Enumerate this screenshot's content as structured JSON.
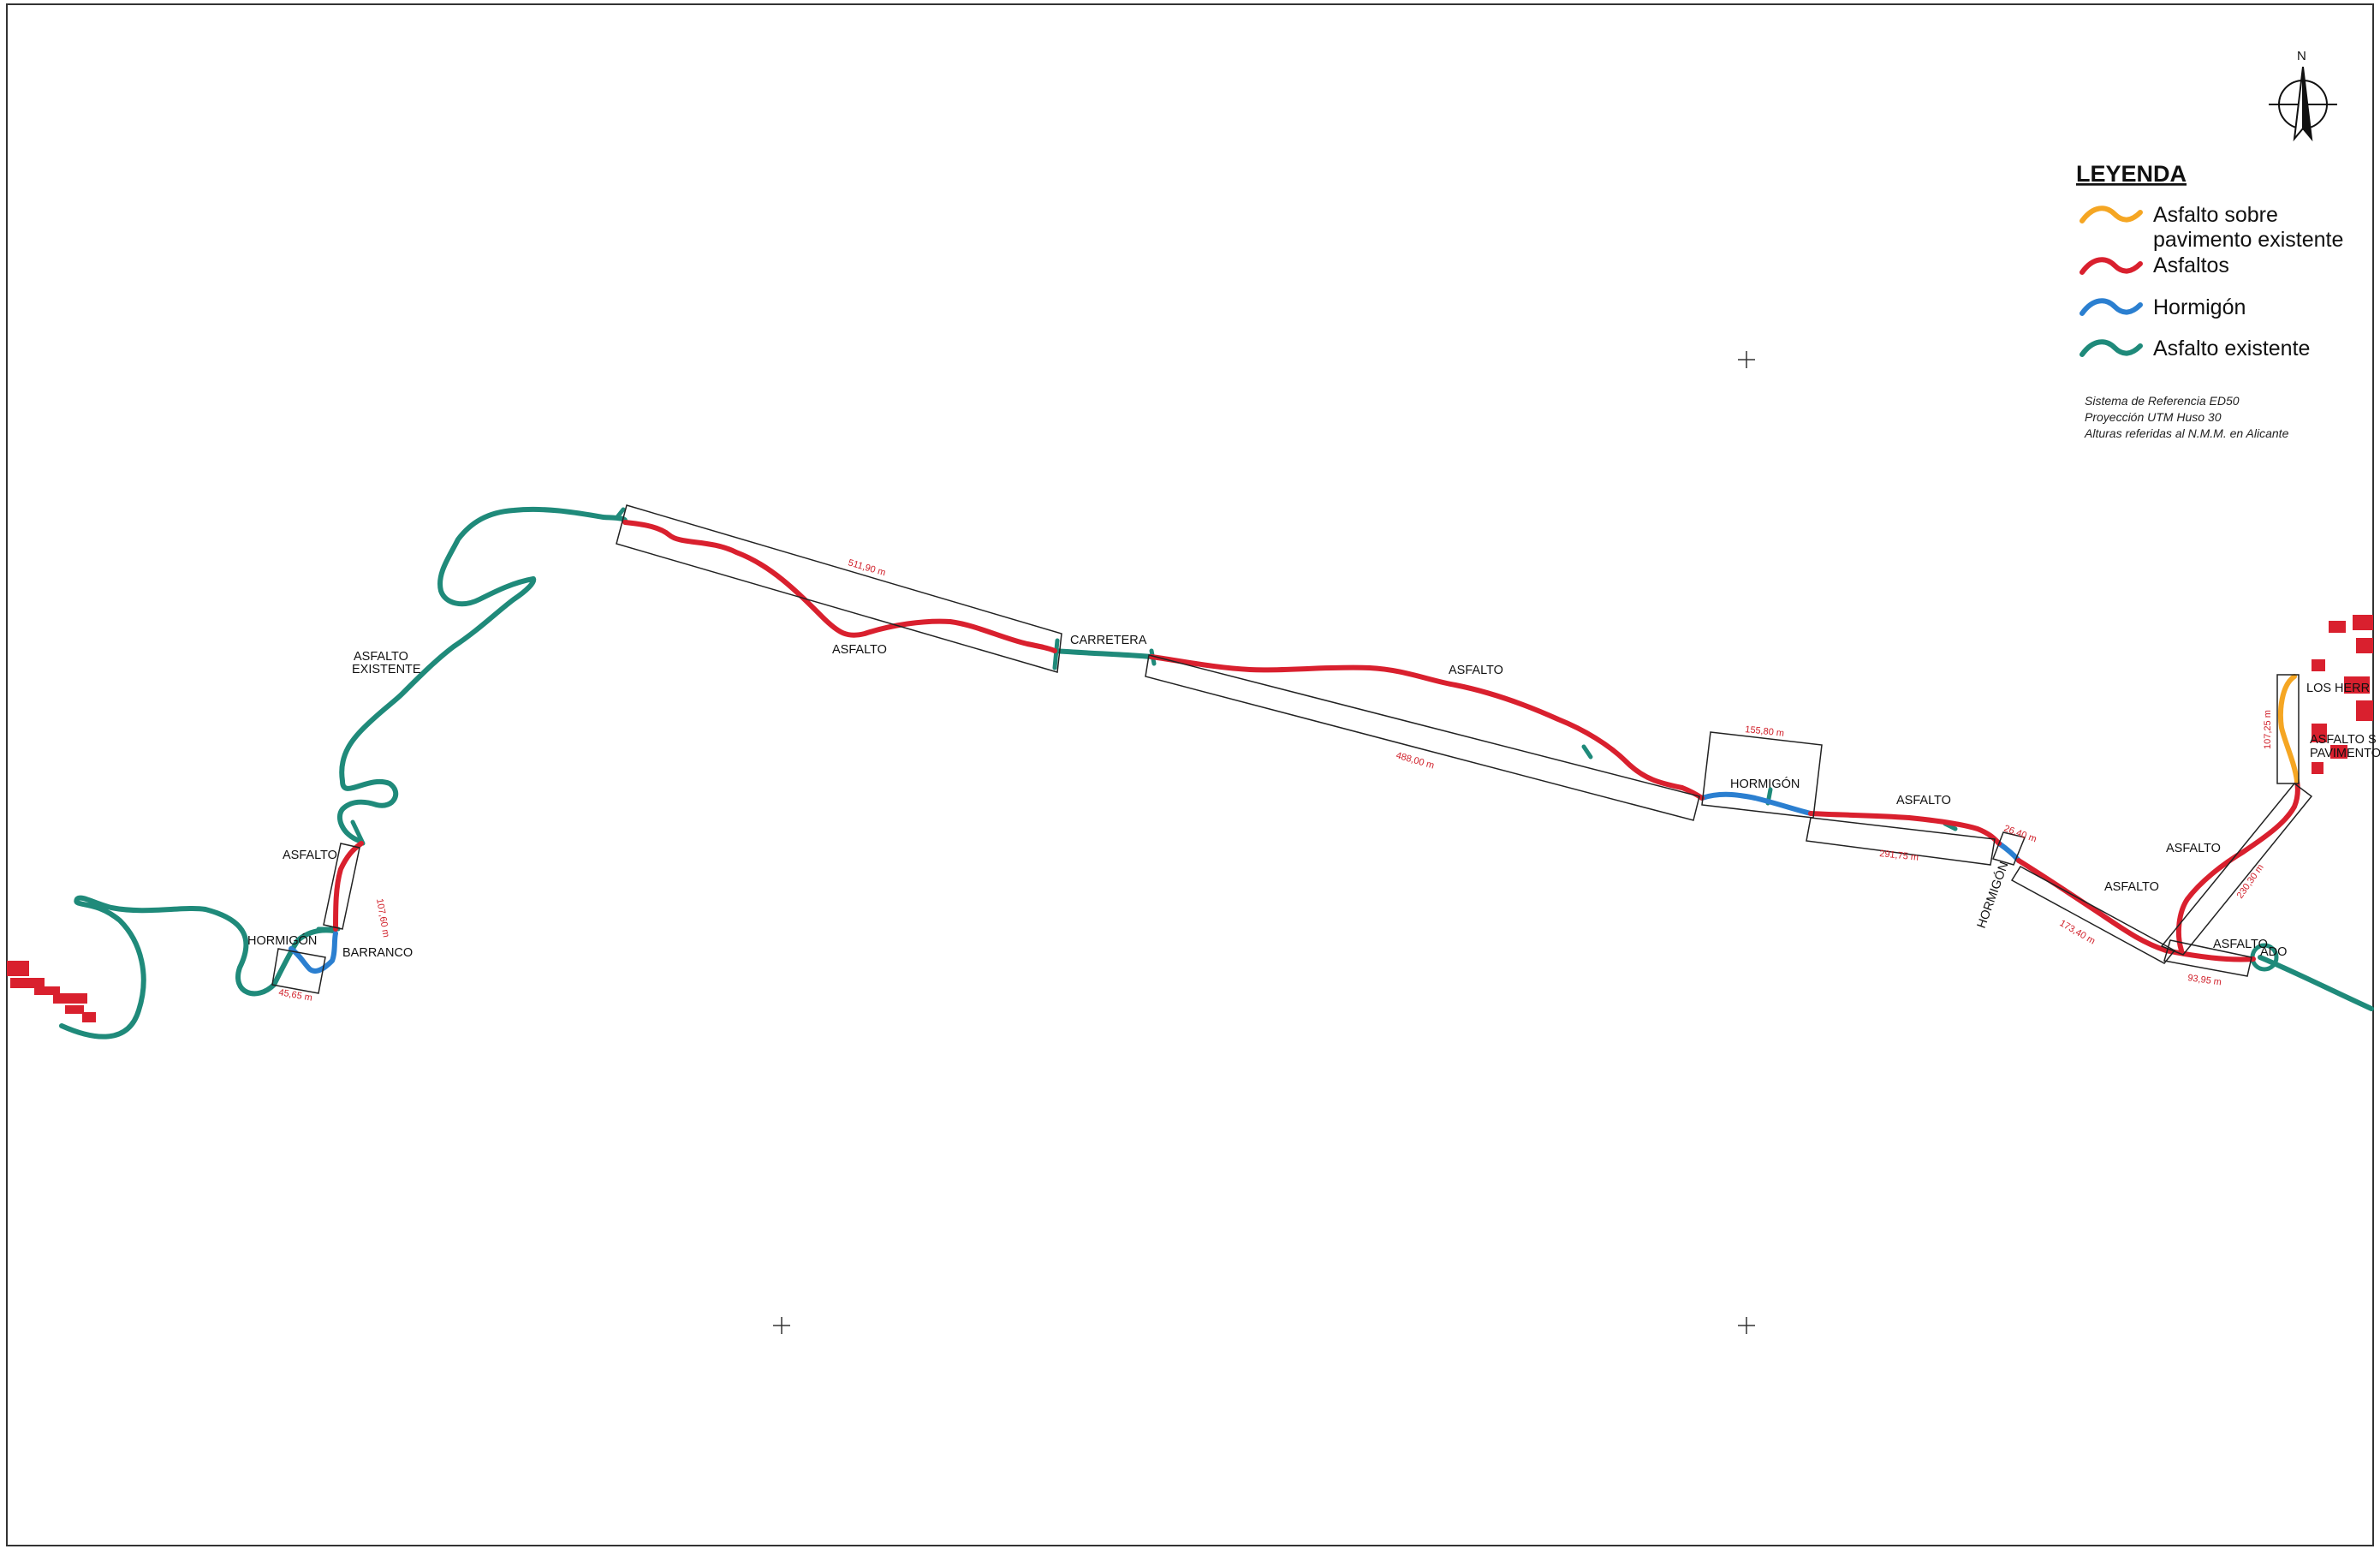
{
  "north_label": "N",
  "legend": {
    "title": "LEYENDA",
    "items": [
      {
        "line1": "Asfalto sobre",
        "line2": "pavimento existente",
        "color": "#f5a623"
      },
      {
        "line1": "Asfaltos",
        "line2": "",
        "color": "#d9202e"
      },
      {
        "line1": "Hormigón",
        "line2": "",
        "color": "#2b7fd0"
      },
      {
        "line1": "Asfalto existente",
        "line2": "",
        "color": "#1f8a7a"
      }
    ]
  },
  "reference_notes": [
    "Sistema de Referencia ED50",
    "Proyección UTM Huso 30",
    "Alturas referidas al N.M.M. en Alicante"
  ],
  "labels": {
    "asfalto_existente_1": "ASFALTO",
    "asfalto_existente_2": "EXISTENTE",
    "asfalto_w": "ASFALTO",
    "hormigon_w": "HORMIGÓN",
    "barranco": "BARRANCO",
    "asfalto_n1": "ASFALTO",
    "carretera": "CARRETERA",
    "asfalto_n2": "ASFALTO",
    "hormigon_c": "HORMIGÓN",
    "asfalto_c": "ASFALTO",
    "hormigon_e": "HORMIGÓN",
    "asfalto_e1": "ASFALTO",
    "asfalto_e2": "ASFALTO",
    "asfalto_e3": "ASFALTO",
    "ado": "ADO",
    "los_herr": "LOS HERR",
    "asfalto_s": "ASFALTO S",
    "pavimento": "PAVIMENTO"
  },
  "dimensions": {
    "d1": "511,90 m",
    "d2": "488,00 m",
    "d3": "155,80 m",
    "d4": "291,75 m",
    "d5": "26,40 m",
    "d6": "173,40 m",
    "d7": "93,95 m",
    "d8": "230,30 m",
    "d9": "107,25 m",
    "d10": "107,60 m",
    "d11": "45,65 m"
  },
  "colors": {
    "asfalto_sobre": "#f5a623",
    "asfalto": "#d9202e",
    "hormigon": "#2b7fd0",
    "asfalto_existente": "#1f8a7a",
    "buildings": "#d9202e"
  }
}
